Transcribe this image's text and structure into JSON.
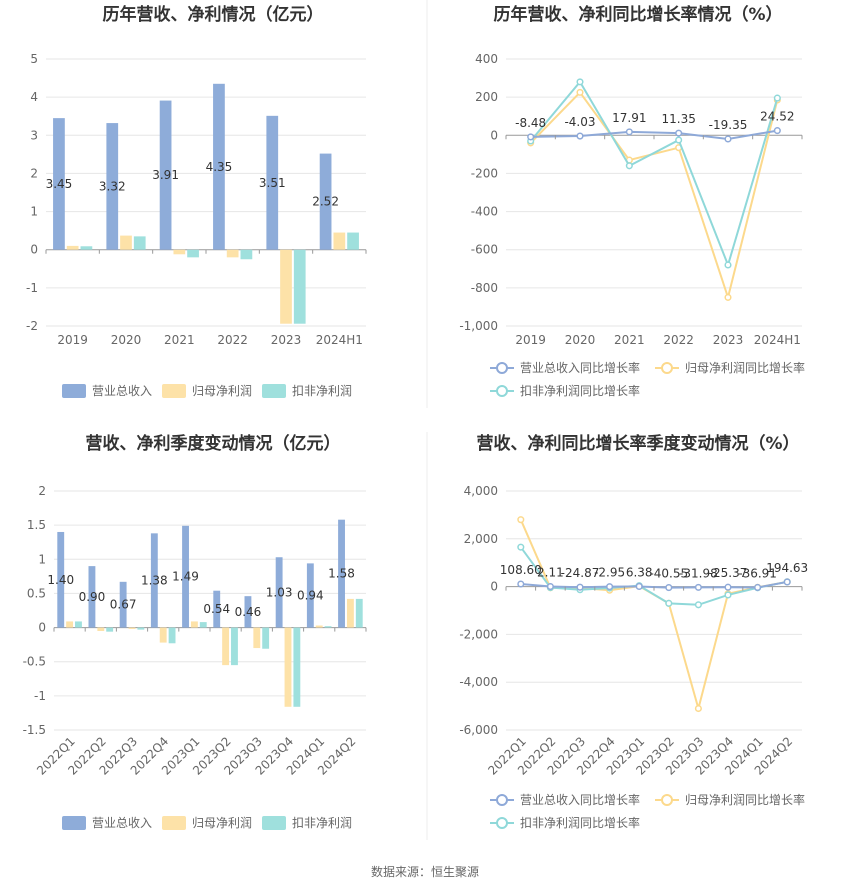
{
  "source": "数据来源：恒生聚源",
  "colors": {
    "revenue_bar": "#8eacd9",
    "parent_bar": "#fde2a8",
    "deducted_bar": "#9fe0dd",
    "revenue_line": "#8ea9d8",
    "parent_line": "#fcd98c",
    "deducted_line": "#8fd8d9",
    "grid": "#e6e6e6",
    "axis": "#999999"
  },
  "chart_data": [
    {
      "type": "bar",
      "title": "历年营收、净利情况（亿元）",
      "categories": [
        "2019",
        "2020",
        "2021",
        "2022",
        "2023",
        "2024H1"
      ],
      "ylim": [
        -2,
        5
      ],
      "yticks": [
        5,
        4,
        3,
        2,
        1,
        0,
        -1,
        -2
      ],
      "series": [
        {
          "name": "营业总收入",
          "values": [
            3.45,
            3.32,
            3.91,
            4.35,
            3.51,
            2.52
          ],
          "labels": [
            "3.45",
            "3.32",
            "3.91",
            "4.35",
            "3.51",
            "2.52"
          ]
        },
        {
          "name": "归母净利润",
          "values": [
            0.1,
            0.37,
            -0.12,
            -0.2,
            -1.94,
            0.45
          ]
        },
        {
          "name": "扣非净利润",
          "values": [
            0.09,
            0.35,
            -0.2,
            -0.25,
            -1.94,
            0.45
          ]
        }
      ],
      "legend": "bottom",
      "grid": true
    },
    {
      "type": "line",
      "title": "历年营收、净利同比增长率情况（%）",
      "categories": [
        "2019",
        "2020",
        "2021",
        "2022",
        "2023",
        "2024H1"
      ],
      "ylim": [
        -1000,
        400
      ],
      "yticks": [
        400,
        200,
        0,
        -200,
        -400,
        -600,
        -800,
        -1000
      ],
      "ytick_labels": [
        "400",
        "200",
        "0",
        "-200",
        "-400",
        "-600",
        "-800",
        "-1,000"
      ],
      "series": [
        {
          "name": "营业总收入同比增长率",
          "values": [
            -8.48,
            -4.03,
            17.91,
            11.35,
            -19.35,
            24.52
          ],
          "labels": [
            "-8.48",
            "-4.03",
            "17.91",
            "11.35",
            "-19.35",
            "24.52"
          ]
        },
        {
          "name": "归母净利润同比增长率",
          "values": [
            -40,
            225,
            -130,
            -65,
            -850,
            185
          ]
        },
        {
          "name": "扣非净利润同比增长率",
          "values": [
            -30,
            280,
            -160,
            -25,
            -680,
            195
          ]
        }
      ],
      "legend": "bottom",
      "grid": true
    },
    {
      "type": "bar",
      "title": "营收、净利季度变动情况（亿元）",
      "categories": [
        "2022Q1",
        "2022Q2",
        "2022Q3",
        "2022Q4",
        "2023Q1",
        "2023Q2",
        "2023Q3",
        "2023Q4",
        "2024Q1",
        "2024Q2"
      ],
      "ylim": [
        -1.5,
        2
      ],
      "yticks": [
        2,
        1.5,
        1,
        0.5,
        0,
        -0.5,
        -1,
        -1.5
      ],
      "ytick_labels": [
        "2",
        "1.5",
        "1",
        "0.5",
        "0",
        "-0.5",
        "-1",
        "-1.5"
      ],
      "series": [
        {
          "name": "营业总收入",
          "values": [
            1.4,
            0.9,
            0.67,
            1.38,
            1.49,
            0.54,
            0.46,
            1.03,
            0.94,
            1.58
          ],
          "labels": [
            "1.40",
            "0.90",
            "0.67",
            "1.38",
            "1.49",
            "0.54",
            "0.46",
            "1.03",
            "0.94",
            "1.58"
          ]
        },
        {
          "name": "归母净利润",
          "values": [
            0.09,
            -0.05,
            -0.02,
            -0.22,
            0.09,
            -0.55,
            -0.3,
            -1.16,
            0.03,
            0.42
          ]
        },
        {
          "name": "扣非净利润",
          "values": [
            0.09,
            -0.06,
            -0.03,
            -0.23,
            0.08,
            -0.55,
            -0.31,
            -1.16,
            0.02,
            0.42
          ]
        }
      ],
      "legend": "bottom",
      "grid": true
    },
    {
      "type": "line",
      "title": "营收、净利同比增长率季度变动情况（%）",
      "categories": [
        "2022Q1",
        "2022Q2",
        "2022Q3",
        "2022Q4",
        "2023Q1",
        "2023Q2",
        "2023Q3",
        "2023Q4",
        "2024Q1",
        "2024Q2"
      ],
      "ylim": [
        -6000,
        4000
      ],
      "yticks": [
        4000,
        2000,
        0,
        -2000,
        -4000,
        -6000
      ],
      "ytick_labels": [
        "4,000",
        "2,000",
        "0",
        "-2,000",
        "-4,000",
        "-6,000"
      ],
      "series": [
        {
          "name": "营业总收入同比增长率",
          "values": [
            108.6,
            2.11,
            -24.87,
            -2.95,
            6.38,
            -40.55,
            -31.98,
            -25.37,
            -36.91,
            194.63
          ],
          "labels": [
            "108.60",
            "2.11",
            "-24.87",
            "-2.95",
            "6.38",
            "-40.55",
            "-31.98",
            "-25.37",
            "-36.91",
            "194.63"
          ]
        },
        {
          "name": "归母净利润同比增长率",
          "values": [
            2800,
            -50,
            -60,
            -150,
            20,
            -700,
            -5100,
            -300,
            -30,
            200
          ]
        },
        {
          "name": "扣非净利润同比增长率",
          "values": [
            1650,
            -40,
            -130,
            -60,
            40,
            -700,
            -760,
            -350,
            -50,
            200
          ]
        }
      ],
      "legend": "bottom",
      "grid": true
    }
  ]
}
